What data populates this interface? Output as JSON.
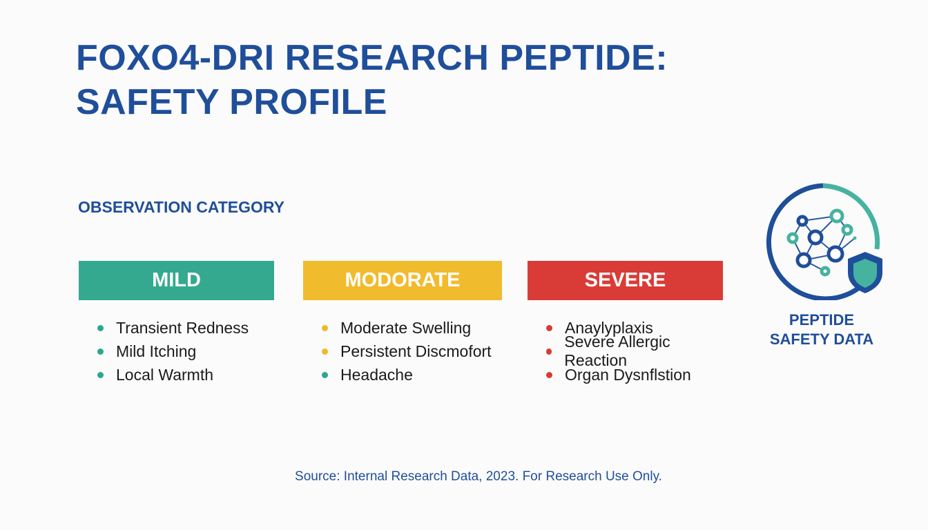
{
  "title_line1": "FOXO4-DRI RESEARCH PEPTIDE:",
  "title_line2": "SAFETY PROFILE",
  "subtitle": "OBSERVATION CATEGORY",
  "categories": [
    {
      "label": "MILD",
      "color": "#35a98f",
      "items": [
        {
          "text": "Transient Redness",
          "dot": "#2aa88e"
        },
        {
          "text": "Mild Itching",
          "dot": "#2aa88e"
        },
        {
          "text": "Local Warmth",
          "dot": "#2aa88e"
        }
      ]
    },
    {
      "label": "MODORATE",
      "color": "#f1bb2e",
      "items": [
        {
          "text": "Moderate Swelling",
          "dot": "#f0b92a"
        },
        {
          "text": "Persistent Discmofort",
          "dot": "#f0b92a"
        },
        {
          "text": "Headache",
          "dot": "#2aa88e"
        }
      ]
    },
    {
      "label": "SEVERE",
      "color": "#d93c36",
      "items": [
        {
          "text": "Anaylyplaxis",
          "dot": "#d93b35"
        },
        {
          "text": "Severe Allergic Reaction",
          "dot": "#d93b35"
        },
        {
          "text": "Organ Dysnflstion",
          "dot": "#d93b35"
        }
      ]
    }
  ],
  "logo": {
    "line1": "PEPTIDE",
    "line2": "SAFETY DATA"
  },
  "source": "Source: Internal Research Data, 2023. For Research Use Only."
}
